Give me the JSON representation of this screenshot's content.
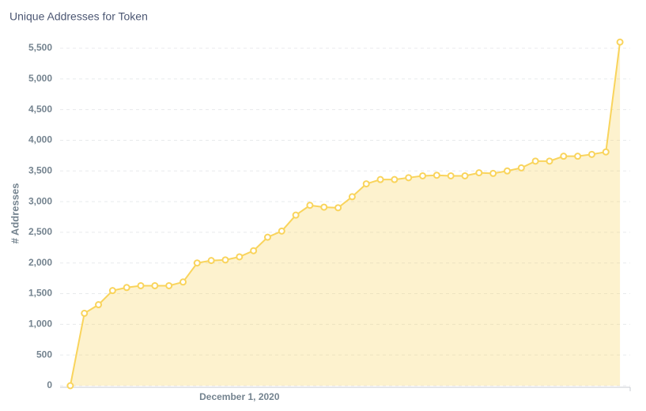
{
  "chart_data": {
    "type": "line",
    "title": "Unique Addresses for Token",
    "y_label": "# Addresses",
    "categories": [
      null,
      null,
      null,
      null,
      null,
      null,
      null,
      null,
      null,
      null,
      null,
      null,
      "December 1, 2020",
      null,
      null,
      null,
      null,
      null,
      null,
      null,
      null,
      null,
      null,
      null,
      null,
      null,
      null,
      null,
      null,
      null,
      null,
      null,
      null,
      null,
      null,
      null,
      null,
      null,
      null,
      null
    ],
    "values": [
      0,
      1180,
      1320,
      1550,
      1600,
      1630,
      1630,
      1630,
      1690,
      2000,
      2040,
      2050,
      2100,
      2200,
      2420,
      2520,
      2780,
      2940,
      2910,
      2900,
      3080,
      3290,
      3360,
      3360,
      3390,
      3420,
      3430,
      3420,
      3420,
      3470,
      3460,
      3500,
      3550,
      3660,
      3660,
      3740,
      3740,
      3770,
      3810,
      5600
    ],
    "color": "#f9d45c",
    "area": true,
    "ylim": [
      0,
      5750
    ],
    "yticks": [
      0,
      500,
      {
        "value": 1000,
        "label": "1,000"
      },
      {
        "value": 1500,
        "label": "1,500"
      },
      {
        "value": 2000,
        "label": "2,000"
      },
      {
        "value": 2500,
        "label": "2,500"
      },
      {
        "value": 3000,
        "label": "3,000"
      },
      {
        "value": 3500,
        "label": "3,500"
      },
      {
        "value": 4000,
        "label": "4,000"
      },
      {
        "value": 4500,
        "label": "4,500"
      },
      {
        "value": 5000,
        "label": "5,000"
      },
      {
        "value": 5500,
        "label": "5,500"
      }
    ],
    "grid": true
  }
}
